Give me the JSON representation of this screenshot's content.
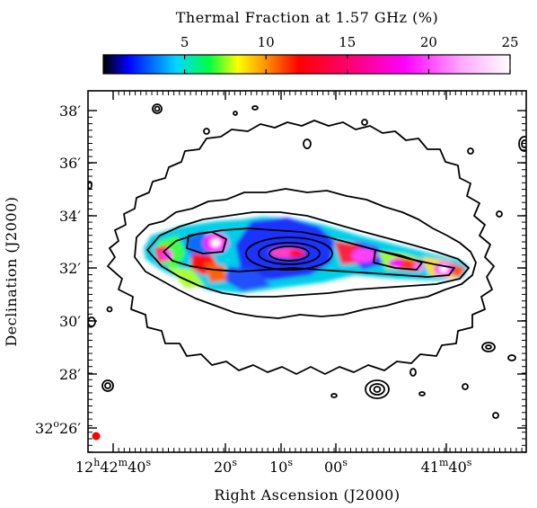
{
  "chart_data": {
    "type": "heatmap",
    "title": "",
    "colorbar": {
      "label": "Thermal Fraction at 1.57 GHz (%)",
      "range": [
        0,
        25
      ],
      "ticks": [
        "5",
        "10",
        "15",
        "20",
        "25"
      ],
      "tick_values": [
        5,
        10,
        15,
        20,
        25
      ],
      "colormap": [
        "#000000",
        "#0000ff",
        "#00ffff",
        "#00ff00",
        "#ffff00",
        "#ff8000",
        "#ff0000",
        "#ff00ff",
        "#ffffff"
      ]
    },
    "xlabel": "Right Ascension (J2000)",
    "ylabel": "Declination (J2000)",
    "x_ticks": [
      {
        "h": "12",
        "hsup": "h",
        "m": "42",
        "msup": "m",
        "s": "40",
        "ssup": "s"
      },
      {
        "s": "20",
        "ssup": "s"
      },
      {
        "s": "10",
        "ssup": "s"
      },
      {
        "s": "00",
        "ssup": "s"
      },
      {
        "m": "41",
        "msup": "m",
        "s": "40",
        "ssup": "s"
      }
    ],
    "y_ticks": [
      {
        "deg": "32",
        "degsup": "o",
        "min": "26",
        "minsup": "′"
      },
      {
        "min": "28",
        "minsup": "′"
      },
      {
        "min": "30",
        "minsup": "′"
      },
      {
        "min": "32",
        "minsup": "′"
      },
      {
        "min": "34",
        "minsup": "′"
      },
      {
        "min": "36",
        "minsup": "′"
      },
      {
        "min": "38",
        "minsup": "′"
      }
    ],
    "contours": "total radio emission contours overlaid (black)",
    "beam_color": "#ff0000"
  }
}
